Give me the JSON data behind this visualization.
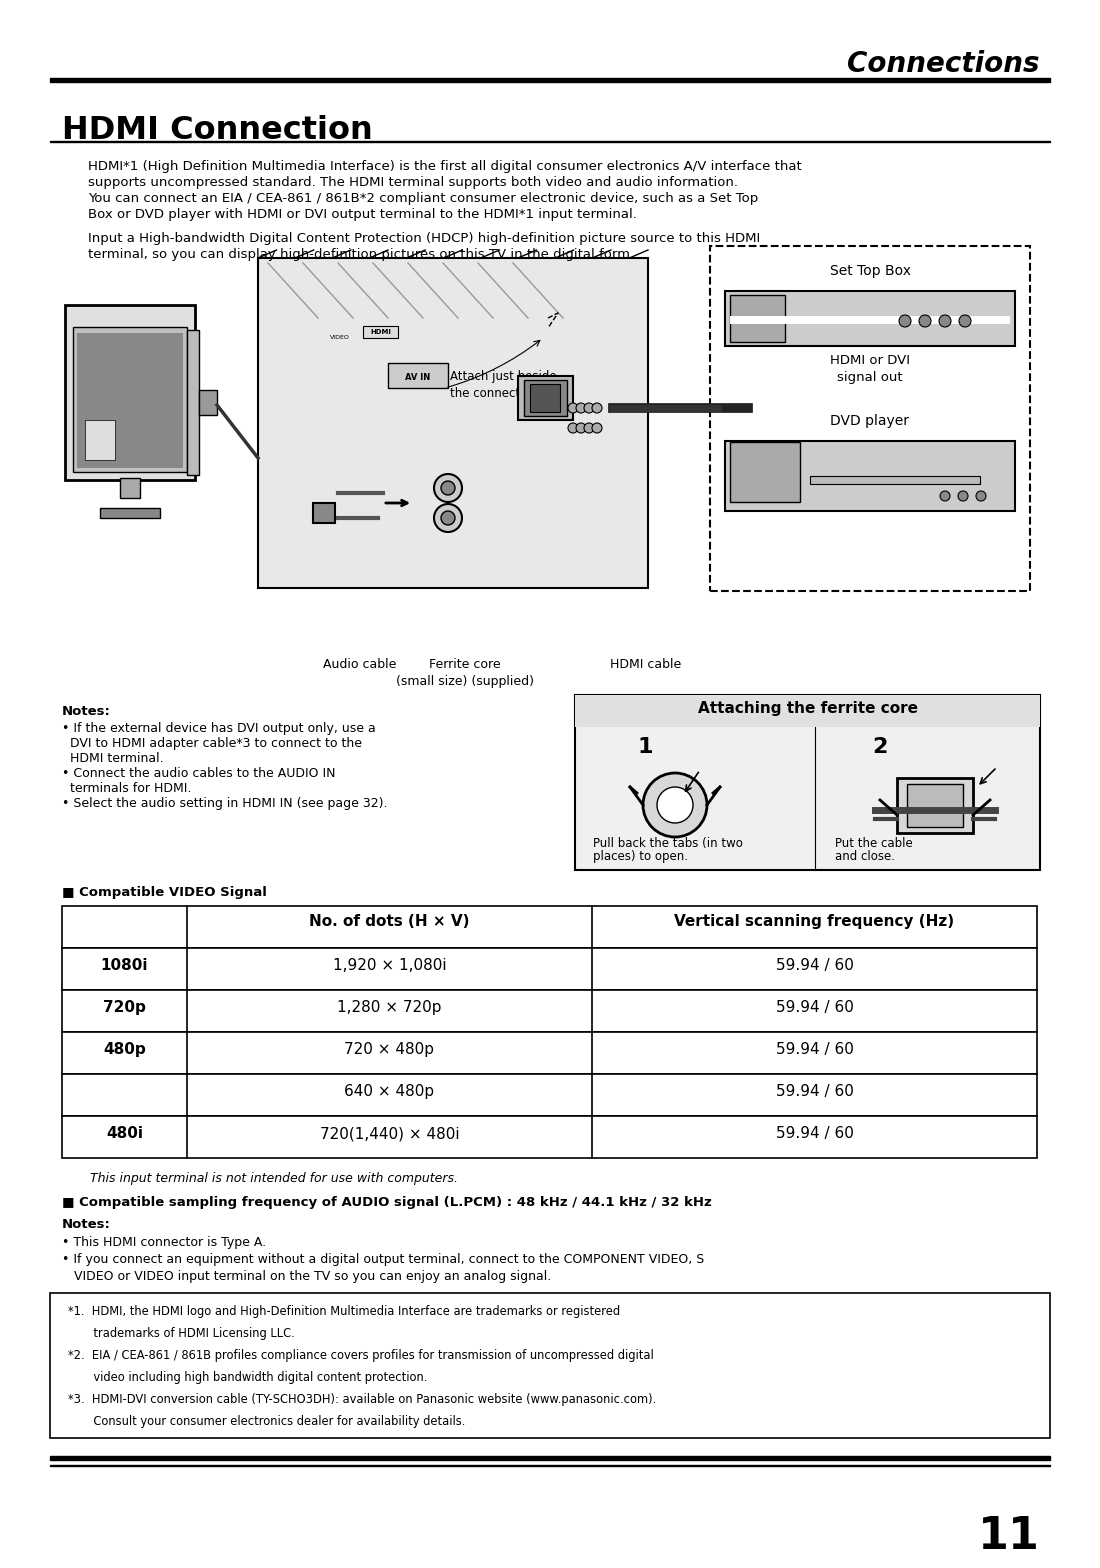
{
  "page_title": "Connections",
  "section_title": "HDMI Connection",
  "intro_text1": "HDMI*1 (High Definition Multimedia Interface) is the first all digital consumer electronics A/V interface that",
  "intro_text2": "supports uncompressed standard. The HDMI terminal supports both video and audio information.",
  "intro_text3": "You can connect an EIA / CEA-861 / 861B*2 compliant consumer electronic device, such as a Set Top",
  "intro_text4": "Box or DVD player with HDMI or DVI output terminal to the HDMI*1 input terminal.",
  "intro_text5": "Input a High-bandwidth Digital Content Protection (HDCP) high-definition picture source to this HDMI",
  "intro_text6": "terminal, so you can display high-definition pictures on this TV in the digital form.",
  "attach_note": "Attach just beside\nthe connector.",
  "audio_cable_lbl": "Audio cable",
  "ferrite_lbl": "Ferrite core\n(small size) (supplied)",
  "hdmi_cable_lbl": "HDMI cable",
  "stb_label": "Set Top Box",
  "hdmi_dvi_out": "HDMI or DVI\nsignal out",
  "dvd_label": "DVD player",
  "notes_title": "Notes:",
  "notes_items": [
    "If the external device has DVI output only, use a",
    "DVI to HDMI adapter cable*3 to connect to the",
    "HDMI terminal.",
    "Connect the audio cables to the AUDIO IN",
    "terminals for HDMI.",
    "Select the audio setting in HDMI IN (see page 32)."
  ],
  "ferrite_title": "Attaching the ferrite core",
  "ferrite_1": "1",
  "ferrite_2": "2",
  "ferrite_desc1a": "Pull back the tabs (in two",
  "ferrite_desc1b": "places) to open.",
  "ferrite_desc2a": "Put the cable",
  "ferrite_desc2b": "and close.",
  "table_heading": "Compatible VIDEO Signal",
  "col1_hdr": "No. of dots (H × V)",
  "col2_hdr": "Vertical scanning frequency (Hz)",
  "table_rows": [
    [
      "1080i",
      "1,920 × 1,080i",
      "59.94 / 60"
    ],
    [
      "720p",
      "1,280 × 720p",
      "59.94 / 60"
    ],
    [
      "480p",
      "720 × 480p",
      "59.94 / 60"
    ],
    [
      "",
      "640 × 480p",
      "59.94 / 60"
    ],
    [
      "480i",
      "720(1,440) × 480i",
      "59.94 / 60"
    ]
  ],
  "note_computer": "This input terminal is not intended for use with computers.",
  "audio_compat": "■ Compatible sampling frequency of AUDIO signal (L.PCM) : 48 kHz / 44.1 kHz / 32 kHz",
  "notes2_title": "Notes:",
  "notes2_items": [
    "• This HDMI connector is Type A.",
    "• If you connect an equipment without a digital output terminal, connect to the COMPONENT VIDEO, S",
    "   VIDEO or VIDEO input terminal on the TV so you can enjoy an analog signal."
  ],
  "fn1": "*1.  HDMI, the HDMI logo and High-Definition Multimedia Interface are trademarks or registered",
  "fn1b": "       trademarks of HDMI Licensing LLC.",
  "fn2": "*2.  EIA / CEA-861 / 861B profiles compliance covers profiles for transmission of uncompressed digital",
  "fn2b": "       video including high bandwidth digital content protection.",
  "fn3": "*3.  HDMI-DVI conversion cable (TY-SCHO3DH): available on Panasonic website (www.panasonic.com).",
  "fn3b": "       Consult your consumer electronics dealer for availability details.",
  "page_num": "11"
}
